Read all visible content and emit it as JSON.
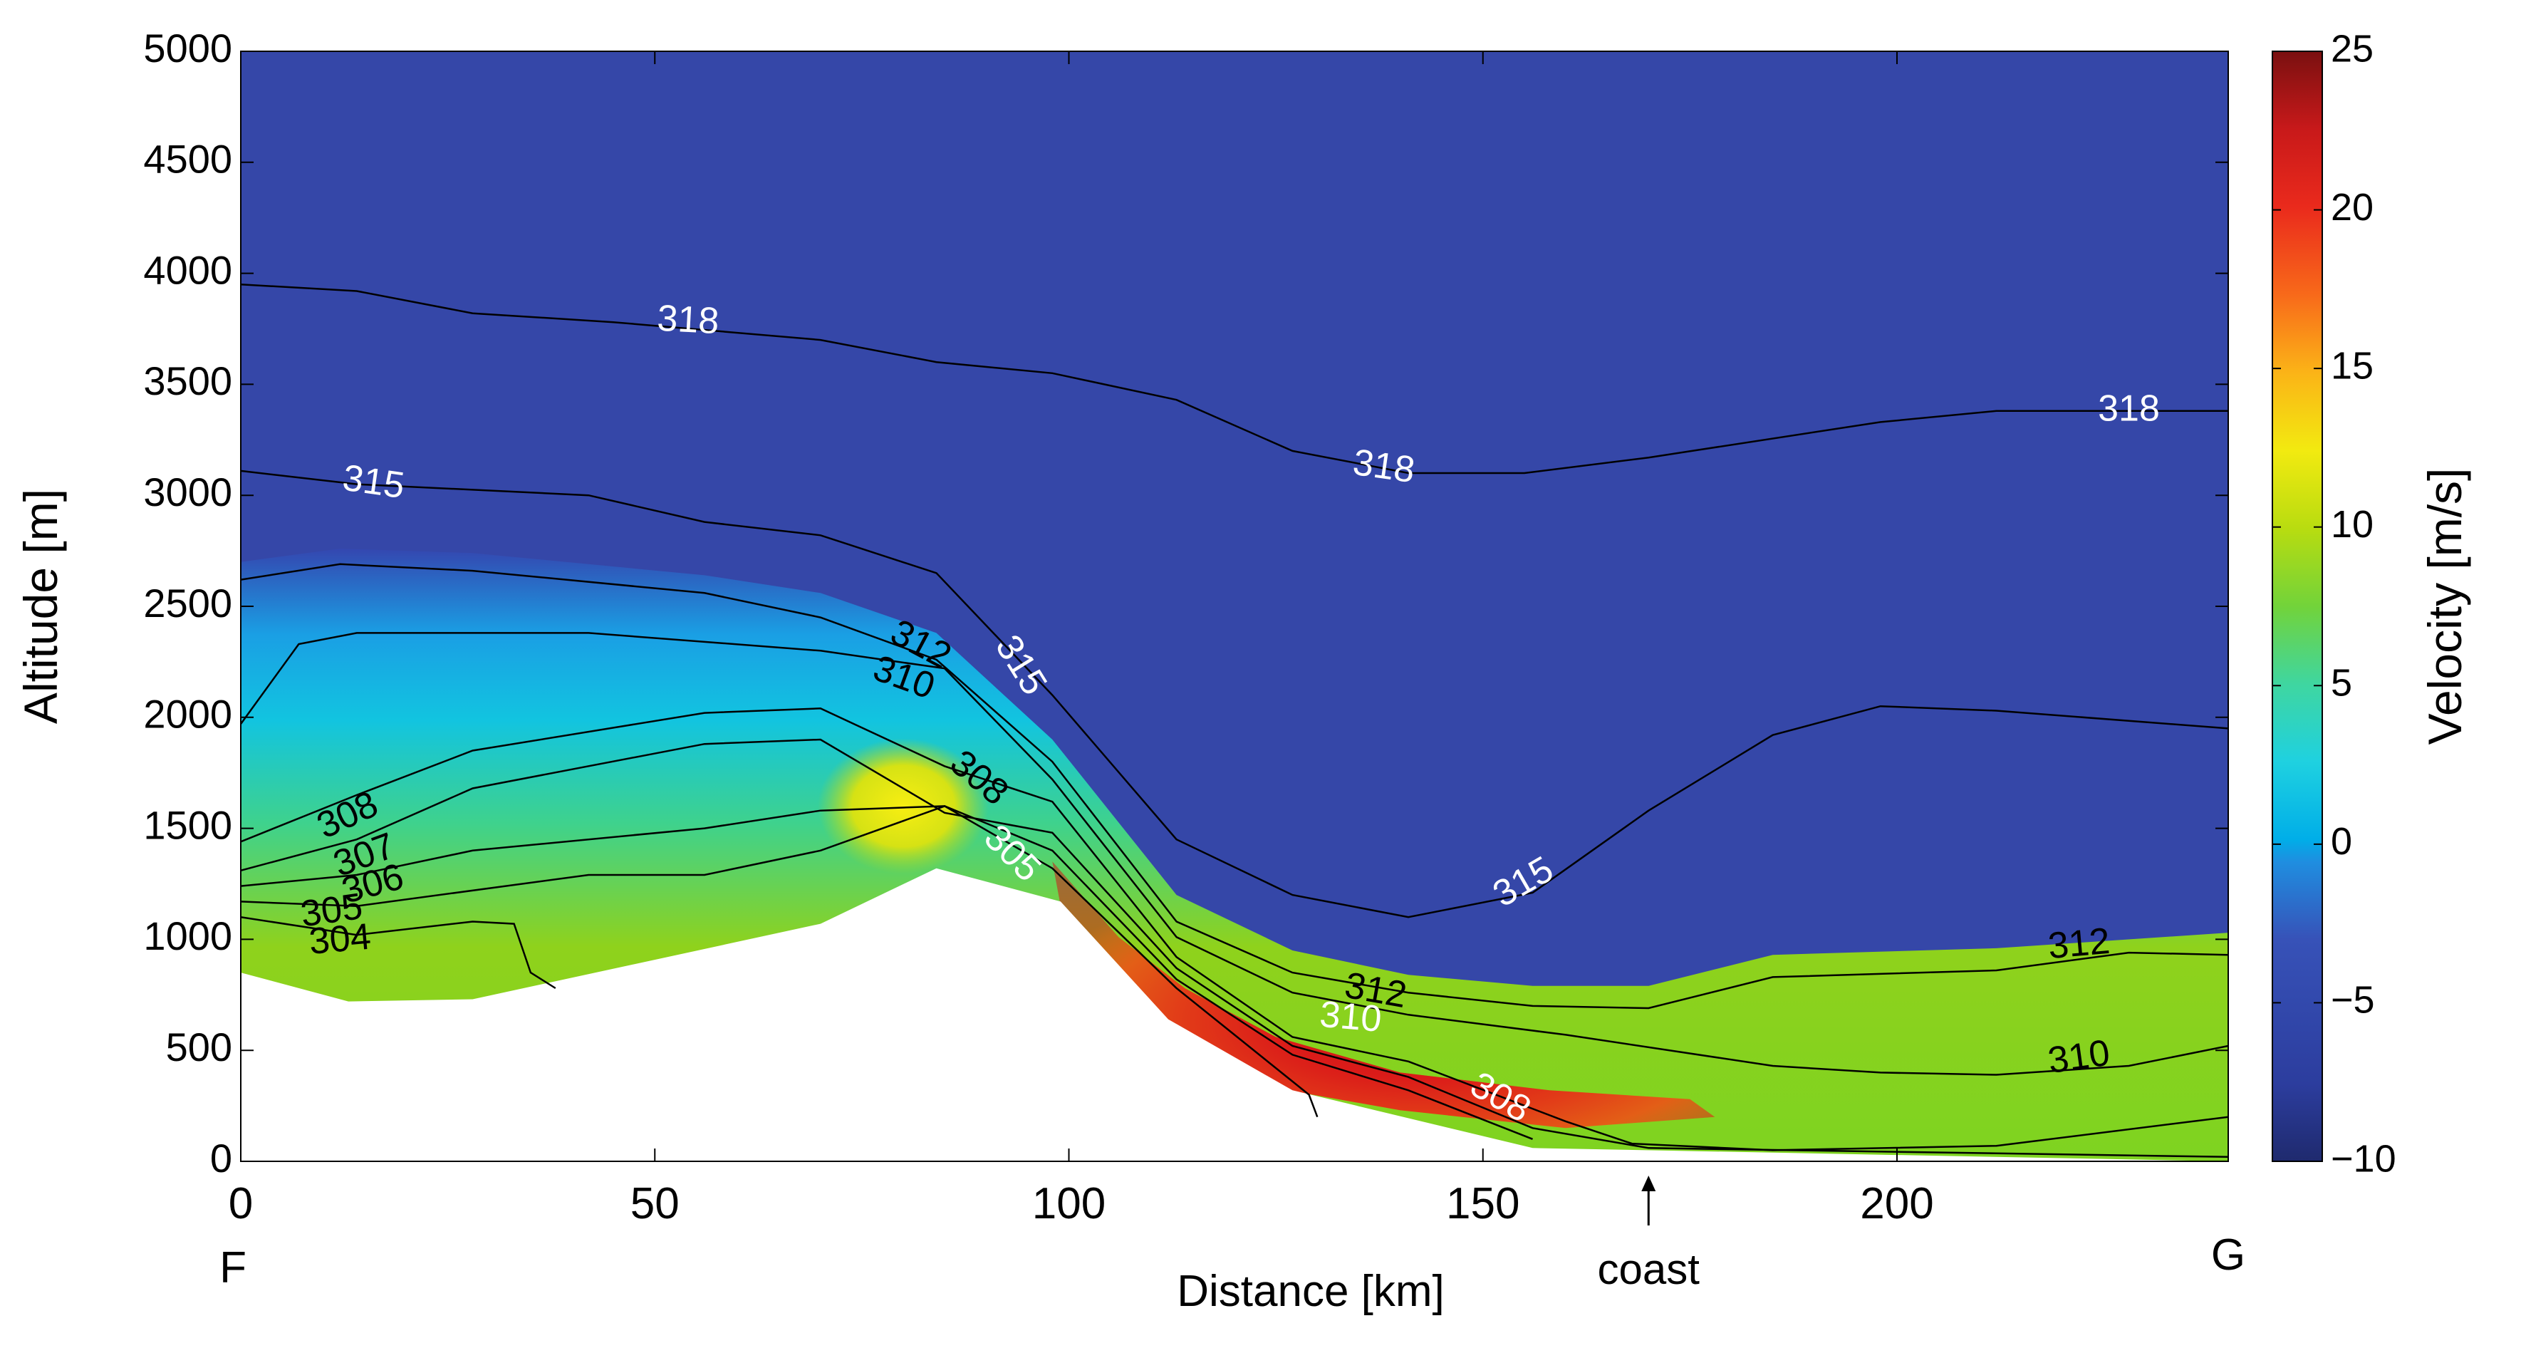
{
  "chart_data": {
    "type": "heatmap",
    "title": "",
    "xlabel": "Distance [km]",
    "ylabel": "Altitude [m]",
    "xlim": [
      0,
      240
    ],
    "ylim": [
      0,
      5000
    ],
    "xticks": [
      0,
      50,
      100,
      150,
      200
    ],
    "yticks": [
      0,
      500,
      1000,
      1500,
      2000,
      2500,
      3000,
      3500,
      4000,
      4500,
      5000
    ],
    "xtick_labels": [
      "0",
      "50",
      "100",
      "150",
      "200"
    ],
    "ytick_labels": [
      "0",
      "500",
      "1000",
      "1500",
      "2000",
      "2500",
      "3000",
      "3500",
      "4000",
      "4500",
      "5000"
    ],
    "colorbar": {
      "label": "Velocity [m/s]",
      "range": [
        -10,
        25
      ],
      "ticks": [
        25,
        20,
        15,
        10,
        5,
        0,
        -5,
        -10
      ],
      "tick_labels": [
        "25",
        "20",
        "15",
        "10",
        "5",
        "0",
        "−5",
        "−10"
      ]
    },
    "annotations": {
      "start_label": "F",
      "end_label": "G",
      "coast_label": "coast",
      "coast_x": 170
    },
    "terrain": [
      [
        0,
        850
      ],
      [
        13,
        720
      ],
      [
        28,
        730
      ],
      [
        70,
        1070
      ],
      [
        84,
        1320
      ],
      [
        99,
        1170
      ],
      [
        112,
        640
      ],
      [
        127,
        320
      ],
      [
        156,
        60
      ],
      [
        240,
        0
      ]
    ],
    "jet_core": [
      [
        98,
        1350
      ],
      [
        106,
        1010
      ],
      [
        114,
        780
      ],
      [
        125,
        560
      ],
      [
        140,
        400
      ],
      [
        158,
        320
      ],
      [
        175,
        280
      ],
      [
        178,
        200
      ],
      [
        160,
        150
      ],
      [
        140,
        230
      ],
      [
        125,
        330
      ],
      [
        112,
        600
      ],
      [
        99,
        1150
      ]
    ],
    "contours": [
      {
        "level": "318",
        "points": [
          [
            0,
            3950
          ],
          [
            14,
            3920
          ],
          [
            28,
            3820
          ],
          [
            45,
            3780
          ],
          [
            70,
            3700
          ],
          [
            84,
            3600
          ],
          [
            98,
            3550
          ],
          [
            113,
            3430
          ],
          [
            127,
            3200
          ],
          [
            141,
            3100
          ],
          [
            155,
            3100
          ],
          [
            170,
            3170
          ],
          [
            198,
            3330
          ],
          [
            212,
            3380
          ],
          [
            240,
            3380
          ]
        ],
        "labels": [
          {
            "text": "318",
            "x": 54,
            "y": 3780,
            "rot": 3
          },
          {
            "text": "318",
            "x": 138,
            "y": 3120,
            "rot": 8
          },
          {
            "text": "318",
            "x": 228,
            "y": 3380,
            "rot": 0
          }
        ]
      },
      {
        "level": "315",
        "points": [
          [
            0,
            3110
          ],
          [
            14,
            3050
          ],
          [
            42,
            3000
          ],
          [
            56,
            2880
          ],
          [
            70,
            2820
          ],
          [
            84,
            2650
          ],
          [
            98,
            2100
          ],
          [
            113,
            1450
          ],
          [
            127,
            1200
          ],
          [
            141,
            1100
          ],
          [
            156,
            1210
          ],
          [
            170,
            1580
          ],
          [
            185,
            1920
          ],
          [
            198,
            2050
          ],
          [
            212,
            2030
          ],
          [
            240,
            1950
          ]
        ],
        "labels": [
          {
            "text": "315",
            "x": 16,
            "y": 3050,
            "rot": 8
          },
          {
            "text": "315",
            "x": 94,
            "y": 2230,
            "rot": 58
          },
          {
            "text": "315",
            "x": 155,
            "y": 1250,
            "rot": -30
          }
        ]
      },
      {
        "level": "312",
        "points": [
          [
            0,
            2620
          ],
          [
            12,
            2690
          ],
          [
            28,
            2660
          ],
          [
            56,
            2560
          ],
          [
            70,
            2450
          ],
          [
            84,
            2260
          ],
          [
            98,
            1800
          ],
          [
            113,
            1080
          ],
          [
            127,
            850
          ],
          [
            141,
            760
          ],
          [
            156,
            700
          ],
          [
            170,
            690
          ],
          [
            185,
            830
          ],
          [
            212,
            860
          ],
          [
            228,
            940
          ],
          [
            240,
            930
          ]
        ],
        "labels": [
          {
            "text": "312",
            "x": 82,
            "y": 2320,
            "rot": 28
          },
          {
            "text": "312",
            "x": 137,
            "y": 760,
            "rot": 10
          },
          {
            "text": "312",
            "x": 222,
            "y": 970,
            "rot": -5
          }
        ]
      },
      {
        "level": "310",
        "points": [
          [
            0,
            1970
          ],
          [
            7,
            2330
          ],
          [
            14,
            2380
          ],
          [
            42,
            2380
          ],
          [
            70,
            2300
          ],
          [
            85,
            2220
          ],
          [
            98,
            1720
          ],
          [
            113,
            1010
          ],
          [
            127,
            760
          ],
          [
            141,
            660
          ],
          [
            160,
            570
          ],
          [
            185,
            430
          ],
          [
            198,
            400
          ],
          [
            212,
            390
          ],
          [
            228,
            430
          ],
          [
            240,
            520
          ]
        ],
        "labels": [
          {
            "text": "310",
            "x": 80,
            "y": 2170,
            "rot": 20
          },
          {
            "text": "310",
            "x": 134,
            "y": 640,
            "rot": 5
          },
          {
            "text": "310",
            "x": 222,
            "y": 460,
            "rot": -8
          }
        ]
      },
      {
        "level": "308",
        "points": [
          [
            0,
            1440
          ],
          [
            14,
            1650
          ],
          [
            28,
            1850
          ],
          [
            56,
            2020
          ],
          [
            70,
            2040
          ],
          [
            85,
            1780
          ],
          [
            98,
            1620
          ],
          [
            113,
            920
          ],
          [
            127,
            560
          ],
          [
            141,
            450
          ],
          [
            160,
            180
          ],
          [
            168,
            80
          ],
          [
            185,
            50
          ],
          [
            212,
            70
          ],
          [
            240,
            200
          ]
        ],
        "labels": [
          {
            "text": "308",
            "x": 13,
            "y": 1550,
            "rot": -25
          },
          {
            "text": "308",
            "x": 89,
            "y": 1720,
            "rot": 40
          },
          {
            "text": "308",
            "x": 152,
            "y": 280,
            "rot": 30
          }
        ]
      },
      {
        "level": "307",
        "points": [
          [
            0,
            1310
          ],
          [
            14,
            1450
          ],
          [
            28,
            1680
          ],
          [
            56,
            1880
          ],
          [
            70,
            1900
          ],
          [
            85,
            1570
          ],
          [
            98,
            1480
          ],
          [
            113,
            870
          ],
          [
            127,
            520
          ],
          [
            141,
            380
          ],
          [
            156,
            150
          ],
          [
            170,
            60
          ],
          [
            240,
            20
          ]
        ],
        "labels": [
          {
            "text": "307",
            "x": 15,
            "y": 1370,
            "rot": -20
          }
        ]
      },
      {
        "level": "306",
        "points": [
          [
            0,
            1240
          ],
          [
            14,
            1290
          ],
          [
            28,
            1400
          ],
          [
            56,
            1500
          ],
          [
            70,
            1580
          ],
          [
            85,
            1600
          ],
          [
            98,
            1400
          ],
          [
            113,
            820
          ],
          [
            127,
            480
          ],
          [
            141,
            320
          ],
          [
            156,
            100
          ]
        ],
        "labels": [
          {
            "text": "306",
            "x": 16,
            "y": 1240,
            "rot": -15
          }
        ]
      },
      {
        "level": "305",
        "points": [
          [
            0,
            1170
          ],
          [
            14,
            1150
          ],
          [
            42,
            1290
          ],
          [
            56,
            1290
          ],
          [
            70,
            1400
          ],
          [
            85,
            1600
          ],
          [
            98,
            1320
          ],
          [
            113,
            780
          ],
          [
            129,
            300
          ],
          [
            130,
            200
          ]
        ],
        "labels": [
          {
            "text": "305",
            "x": 11,
            "y": 1120,
            "rot": -8
          },
          {
            "text": "305",
            "x": 93,
            "y": 1380,
            "rot": 45
          }
        ]
      },
      {
        "level": "304",
        "points": [
          [
            0,
            1100
          ],
          [
            14,
            1020
          ],
          [
            28,
            1080
          ],
          [
            33,
            1070
          ],
          [
            35,
            850
          ],
          [
            38,
            780
          ]
        ],
        "labels": [
          {
            "text": "304",
            "x": 12,
            "y": 990,
            "rot": -5
          }
        ]
      }
    ]
  }
}
